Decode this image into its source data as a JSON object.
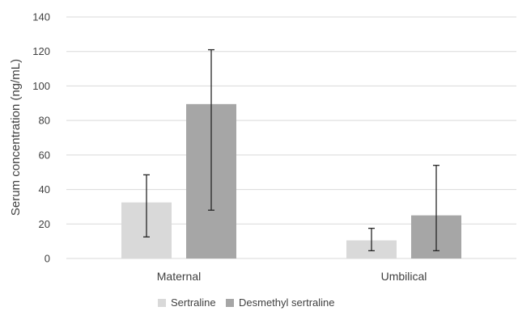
{
  "chart_data": {
    "type": "bar",
    "title": "",
    "xlabel": "",
    "ylabel": "Serum concentration (ng/mL)",
    "ylim": [
      0,
      140
    ],
    "yticks": [
      0,
      20,
      40,
      60,
      80,
      100,
      120,
      140
    ],
    "grid": true,
    "legend_position": "bottom",
    "categories": [
      "Maternal",
      "Umbilical"
    ],
    "series": [
      {
        "name": "Sertraline",
        "color": "#d9d9d9",
        "values": [
          32.5,
          10.5
        ],
        "error_low": [
          12.5,
          4.5
        ],
        "error_high": [
          48.5,
          17.5
        ]
      },
      {
        "name": "Desmethyl sertraline",
        "color": "#a6a6a6",
        "values": [
          89.5,
          25
        ],
        "error_low": [
          28,
          4.5
        ],
        "error_high": [
          121,
          54
        ]
      }
    ]
  }
}
